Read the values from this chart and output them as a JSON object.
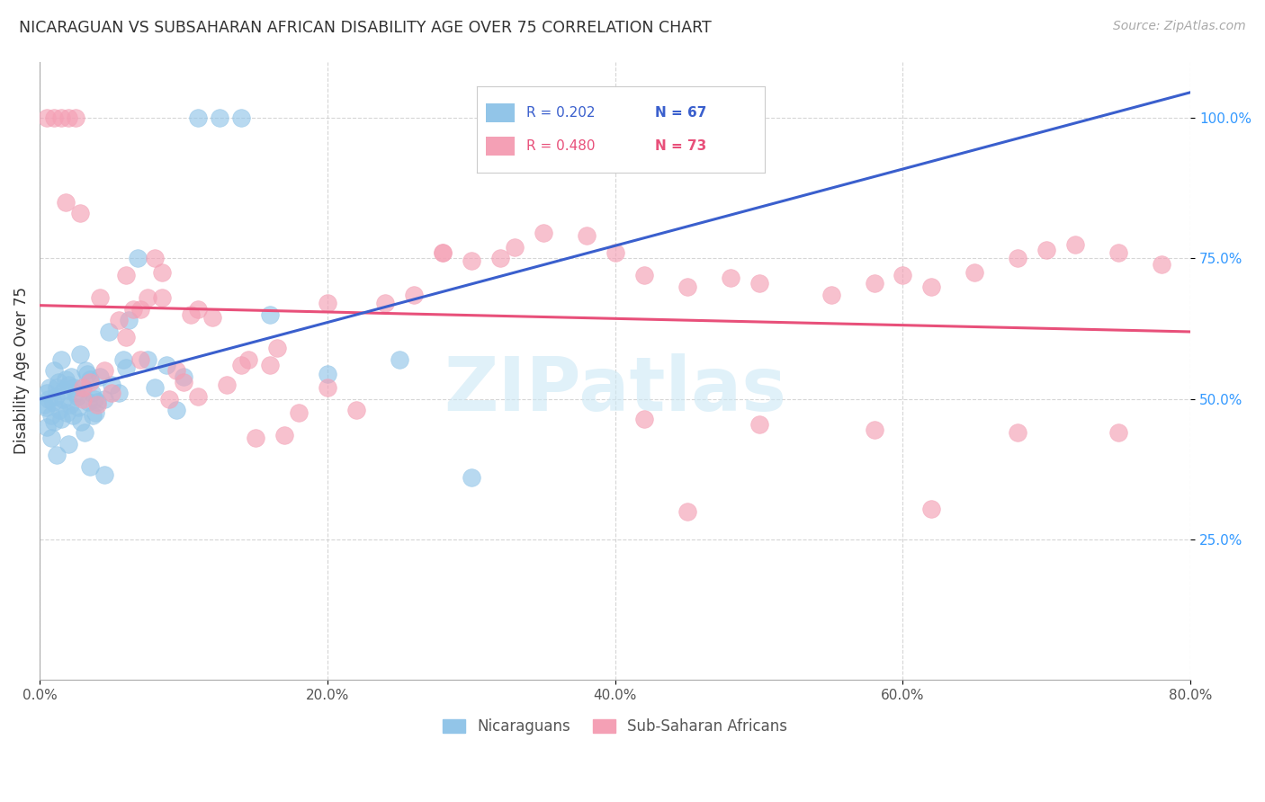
{
  "title": "NICARAGUAN VS SUBSAHARAN AFRICAN DISABILITY AGE OVER 75 CORRELATION CHART",
  "source": "Source: ZipAtlas.com",
  "xlabel_ticks": [
    "0.0%",
    "20.0%",
    "40.0%",
    "60.0%",
    "80.0%"
  ],
  "xlabel_values": [
    0.0,
    20.0,
    40.0,
    60.0,
    80.0
  ],
  "ylabel_ticks": [
    "25.0%",
    "50.0%",
    "75.0%",
    "100.0%"
  ],
  "ylabel_values": [
    25.0,
    50.0,
    75.0,
    100.0
  ],
  "xlim": [
    0.0,
    80.0
  ],
  "ylim": [
    0.0,
    110.0
  ],
  "blue_R": 0.202,
  "blue_N": 67,
  "pink_R": 0.48,
  "pink_N": 73,
  "blue_color": "#92c5e8",
  "pink_color": "#f4a0b5",
  "blue_line_color": "#3a5fcd",
  "pink_line_color": "#e8507a",
  "watermark": "ZIPatlas",
  "legend_label_blue": "Nicaraguans",
  "legend_label_pink": "Sub-Saharan Africans",
  "blue_x": [
    0.3,
    0.4,
    0.5,
    0.6,
    0.7,
    0.8,
    0.9,
    1.0,
    1.0,
    1.1,
    1.2,
    1.3,
    1.4,
    1.5,
    1.5,
    1.6,
    1.7,
    1.8,
    1.9,
    2.0,
    2.1,
    2.2,
    2.3,
    2.4,
    2.5,
    2.6,
    2.7,
    2.8,
    2.9,
    3.0,
    3.1,
    3.2,
    3.3,
    3.4,
    3.5,
    3.6,
    3.7,
    3.8,
    3.9,
    4.0,
    4.2,
    4.5,
    4.8,
    5.0,
    5.5,
    5.8,
    6.0,
    6.2,
    6.8,
    7.5,
    8.0,
    8.8,
    9.5,
    10.0,
    11.0,
    12.5,
    14.0,
    16.0,
    20.0,
    25.0,
    30.0,
    0.5,
    0.8,
    1.2,
    2.0,
    3.5,
    4.5
  ],
  "blue_y": [
    49.0,
    48.5,
    51.0,
    50.0,
    52.0,
    47.0,
    49.5,
    46.0,
    55.0,
    50.5,
    52.0,
    53.0,
    48.0,
    46.5,
    57.0,
    50.0,
    51.5,
    53.5,
    47.5,
    52.5,
    49.0,
    54.0,
    47.0,
    52.0,
    51.0,
    50.5,
    48.5,
    58.0,
    46.0,
    52.0,
    44.0,
    55.0,
    54.5,
    49.5,
    53.5,
    51.0,
    47.0,
    50.0,
    47.5,
    49.5,
    54.0,
    50.0,
    62.0,
    52.5,
    51.0,
    57.0,
    55.5,
    64.0,
    75.0,
    57.0,
    52.0,
    56.0,
    48.0,
    54.0,
    100.0,
    100.0,
    100.0,
    65.0,
    54.5,
    57.0,
    36.0,
    45.0,
    43.0,
    40.0,
    42.0,
    38.0,
    36.5
  ],
  "pink_x": [
    0.5,
    1.0,
    1.5,
    2.0,
    2.5,
    3.0,
    3.5,
    4.0,
    4.5,
    5.0,
    5.5,
    6.0,
    6.5,
    7.0,
    7.5,
    8.0,
    8.5,
    9.0,
    9.5,
    10.0,
    11.0,
    12.0,
    13.0,
    14.0,
    15.0,
    16.0,
    17.0,
    18.0,
    20.0,
    22.0,
    24.0,
    26.0,
    28.0,
    30.0,
    32.0,
    35.0,
    38.0,
    40.0,
    42.0,
    45.0,
    48.0,
    50.0,
    55.0,
    58.0,
    60.0,
    62.0,
    65.0,
    68.0,
    70.0,
    72.0,
    75.0,
    78.0,
    3.0,
    7.0,
    11.0,
    20.0,
    33.0,
    42.0,
    50.0,
    58.0,
    68.0,
    75.0,
    1.8,
    2.8,
    4.2,
    6.0,
    8.5,
    10.5,
    14.5,
    16.5,
    28.0,
    45.0,
    62.0
  ],
  "pink_y": [
    100.0,
    100.0,
    100.0,
    100.0,
    100.0,
    50.0,
    53.0,
    49.0,
    55.0,
    51.0,
    64.0,
    61.0,
    66.0,
    57.0,
    68.0,
    75.0,
    72.5,
    50.0,
    55.0,
    53.0,
    50.5,
    64.5,
    52.5,
    56.0,
    43.0,
    56.0,
    43.5,
    47.5,
    52.0,
    48.0,
    67.0,
    68.5,
    76.0,
    74.5,
    75.0,
    79.5,
    79.0,
    76.0,
    72.0,
    70.0,
    71.5,
    70.5,
    68.5,
    70.5,
    72.0,
    70.0,
    72.5,
    75.0,
    76.5,
    77.5,
    76.0,
    74.0,
    52.0,
    66.0,
    66.0,
    67.0,
    77.0,
    46.5,
    45.5,
    44.5,
    44.0,
    44.0,
    85.0,
    83.0,
    68.0,
    72.0,
    68.0,
    65.0,
    57.0,
    59.0,
    76.0,
    30.0,
    30.5
  ]
}
